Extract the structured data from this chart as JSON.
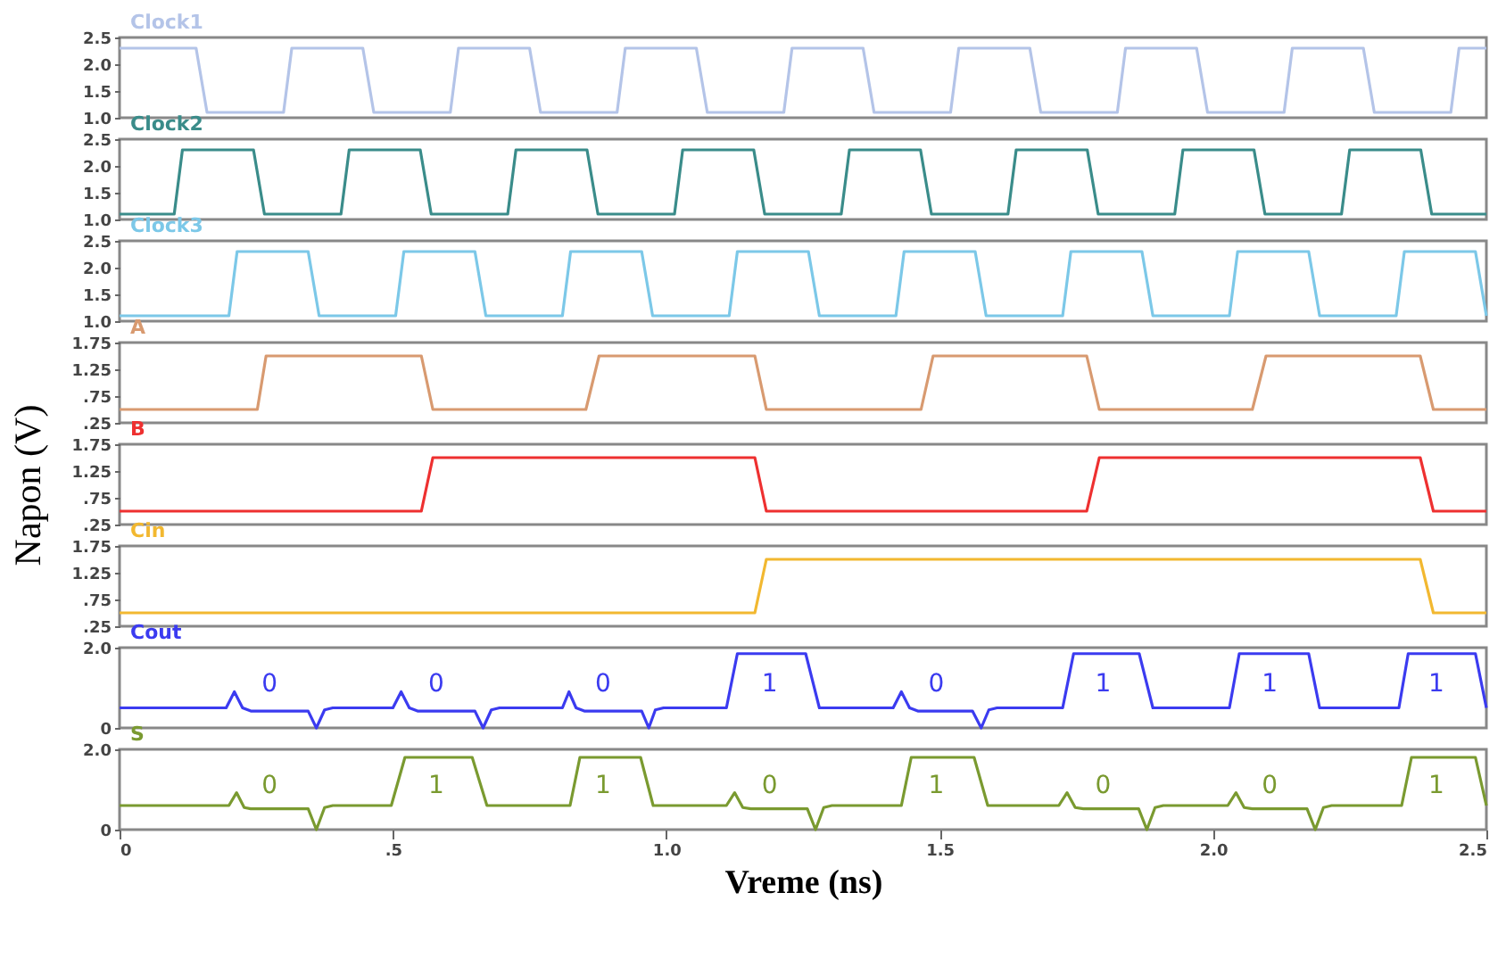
{
  "chart_data": [
    {
      "type": "line",
      "x": [
        0,
        0.14,
        0.16,
        0.3,
        0.315,
        0.445,
        0.465,
        0.605,
        0.62,
        0.75,
        0.77,
        0.91,
        0.925,
        1.055,
        1.075,
        1.215,
        1.23,
        1.36,
        1.38,
        1.52,
        1.535,
        1.665,
        1.685,
        1.825,
        1.84,
        1.97,
        1.99,
        2.13,
        2.145,
        2.275,
        2.295,
        2.435,
        2.45,
        2.5
      ],
      "series": [
        {
          "name": "Clock1",
          "color": "#b4c4e8",
          "values": [
            2.3,
            2.3,
            1.1,
            1.1,
            2.3,
            2.3,
            1.1,
            1.1,
            2.3,
            2.3,
            1.1,
            1.1,
            2.3,
            2.3,
            1.1,
            1.1,
            2.3,
            2.3,
            1.1,
            1.1,
            2.3,
            2.3,
            1.1,
            1.1,
            2.3,
            2.3,
            1.1,
            1.1,
            2.3,
            2.3,
            1.1,
            1.1,
            2.3,
            2.3
          ]
        }
      ],
      "xlim": [
        0,
        2.5
      ],
      "ylim": [
        1,
        2.5
      ],
      "yticks": [
        {
          "value": 1,
          "label": "1.0"
        },
        1.5,
        {
          "value": 2,
          "label": "2.0"
        },
        2.5
      ],
      "tick_labels": "y"
    },
    {
      "type": "line",
      "x": [
        0,
        0.1,
        0.115,
        0.245,
        0.265,
        0.405,
        0.42,
        0.55,
        0.57,
        0.71,
        0.725,
        0.855,
        0.875,
        1.015,
        1.03,
        1.16,
        1.18,
        1.32,
        1.335,
        1.465,
        1.485,
        1.625,
        1.64,
        1.77,
        1.79,
        1.93,
        1.945,
        2.075,
        2.095,
        2.235,
        2.25,
        2.38,
        2.4,
        2.5
      ],
      "series": [
        {
          "name": "Clock2",
          "color": "#3a8c8a",
          "values": [
            1.1,
            1.1,
            2.3,
            2.3,
            1.1,
            1.1,
            2.3,
            2.3,
            1.1,
            1.1,
            2.3,
            2.3,
            1.1,
            1.1,
            2.3,
            2.3,
            1.1,
            1.1,
            2.3,
            2.3,
            1.1,
            1.1,
            2.3,
            2.3,
            1.1,
            1.1,
            2.3,
            2.3,
            1.1,
            1.1,
            2.3,
            2.3,
            1.1,
            1.1
          ]
        }
      ],
      "xlim": [
        0,
        2.5
      ],
      "ylim": [
        1,
        2.5
      ],
      "yticks": [
        {
          "value": 1,
          "label": "1.0"
        },
        1.5,
        {
          "value": 2,
          "label": "2.0"
        },
        2.5
      ],
      "tick_labels": "y"
    },
    {
      "type": "line",
      "x": [
        0,
        0.2,
        0.215,
        0.345,
        0.365,
        0.505,
        0.52,
        0.65,
        0.67,
        0.81,
        0.825,
        0.955,
        0.975,
        1.115,
        1.13,
        1.26,
        1.28,
        1.42,
        1.435,
        1.565,
        1.585,
        1.725,
        1.74,
        1.87,
        1.89,
        2.03,
        2.045,
        2.175,
        2.195,
        2.335,
        2.35,
        2.48,
        2.5
      ],
      "series": [
        {
          "name": "Clock3",
          "color": "#7cc8e8",
          "values": [
            1.1,
            1.1,
            2.3,
            2.3,
            1.1,
            1.1,
            2.3,
            2.3,
            1.1,
            1.1,
            2.3,
            2.3,
            1.1,
            1.1,
            2.3,
            2.3,
            1.1,
            1.1,
            2.3,
            2.3,
            1.1,
            1.1,
            2.3,
            2.3,
            1.1,
            1.1,
            2.3,
            2.3,
            1.1,
            1.1,
            2.3,
            2.3,
            1.1
          ]
        }
      ],
      "xlim": [
        0,
        2.5
      ],
      "ylim": [
        1,
        2.5
      ],
      "yticks": [
        {
          "value": 1,
          "label": "1.0"
        },
        1.5,
        {
          "value": 2,
          "label": "2.0"
        },
        2.5
      ],
      "tick_labels": "y"
    },
    {
      "type": "line",
      "x": [
        0,
        0.252,
        0.268,
        0.552,
        0.573,
        0.853,
        0.877,
        1.162,
        1.183,
        1.466,
        1.488,
        1.769,
        1.792,
        2.072,
        2.097,
        2.379,
        2.403,
        2.5
      ],
      "series": [
        {
          "name": "A",
          "color": "#d89a70",
          "values": [
            0.5,
            0.5,
            1.5,
            1.5,
            0.5,
            0.5,
            1.5,
            1.5,
            0.5,
            0.5,
            1.5,
            1.5,
            0.5,
            0.5,
            1.5,
            1.5,
            0.5,
            0.5
          ]
        }
      ],
      "xlim": [
        0,
        2.5
      ],
      "ylim": [
        0.25,
        1.75
      ],
      "yticks": [
        {
          "value": 0.25,
          "label": ".25"
        },
        {
          "value": 0.75,
          "label": ".75"
        },
        1.25,
        1.75
      ],
      "tick_labels": "y"
    },
    {
      "type": "line",
      "x": [
        0,
        0.552,
        0.573,
        1.162,
        1.183,
        1.769,
        1.792,
        2.379,
        2.403,
        2.5
      ],
      "series": [
        {
          "name": "B",
          "color": "#ee3030",
          "values": [
            0.5,
            0.5,
            1.5,
            1.5,
            0.5,
            0.5,
            1.5,
            1.5,
            0.5,
            0.5
          ]
        }
      ],
      "ylabel": "Napon (V)",
      "xlim": [
        0,
        2.5
      ],
      "ylim": [
        0.25,
        1.75
      ],
      "yticks": [
        {
          "value": 0.25,
          "label": ".25"
        },
        {
          "value": 0.75,
          "label": ".75"
        },
        1.25,
        1.75
      ],
      "tick_labels": "y"
    },
    {
      "type": "line",
      "x": [
        0,
        1.162,
        1.183,
        2.379,
        2.403,
        2.5
      ],
      "series": [
        {
          "name": "Cin",
          "color": "#f2b830",
          "values": [
            0.5,
            0.5,
            1.5,
            1.5,
            0.5,
            0.5
          ]
        }
      ],
      "xlim": [
        0,
        2.5
      ],
      "ylim": [
        0.25,
        1.75
      ],
      "yticks": [
        {
          "value": 0.25,
          "label": ".25"
        },
        {
          "value": 0.75,
          "label": ".75"
        },
        1.25,
        1.75
      ],
      "tick_labels": "y"
    },
    {
      "type": "line",
      "x": [
        0,
        0.195,
        0.21,
        0.225,
        0.24,
        0.345,
        0.36,
        0.375,
        0.39,
        0.5,
        0.515,
        0.53,
        0.545,
        0.65,
        0.665,
        0.68,
        0.695,
        0.81,
        0.822,
        0.835,
        0.85,
        0.955,
        0.968,
        0.98,
        0.995,
        1.11,
        1.13,
        1.255,
        1.28,
        1.415,
        1.43,
        1.445,
        1.46,
        1.56,
        1.576,
        1.59,
        1.605,
        1.725,
        1.745,
        1.865,
        1.89,
        2.03,
        2.048,
        2.175,
        2.195,
        2.34,
        2.357,
        2.48,
        2.5
      ],
      "series": [
        {
          "name": "Cout",
          "color": "#3b3bf0",
          "values": [
            0.5,
            0.5,
            0.9,
            0.5,
            0.42,
            0.42,
            0,
            0.45,
            0.5,
            0.5,
            0.9,
            0.5,
            0.42,
            0.42,
            0,
            0.45,
            0.5,
            0.5,
            0.9,
            0.5,
            0.42,
            0.42,
            0,
            0.45,
            0.5,
            0.5,
            1.85,
            1.85,
            0.5,
            0.5,
            0.9,
            0.5,
            0.42,
            0.42,
            0,
            0.45,
            0.5,
            0.5,
            1.85,
            1.85,
            0.5,
            0.5,
            1.85,
            1.85,
            0.5,
            0.5,
            1.85,
            1.85,
            0.5
          ]
        }
      ],
      "annotations": [
        "0",
        "0",
        "0",
        "1",
        "0",
        "1",
        "1",
        "1"
      ],
      "xlim": [
        0,
        2.5
      ],
      "ylim": [
        0,
        2
      ],
      "yticks": [
        0,
        {
          "value": 2,
          "label": "2.0"
        }
      ],
      "tick_labels": "y"
    },
    {
      "type": "line",
      "x": [
        0,
        0.2,
        0.214,
        0.228,
        0.24,
        0.345,
        0.36,
        0.375,
        0.39,
        0.497,
        0.522,
        0.645,
        0.672,
        0.824,
        0.842,
        0.953,
        0.976,
        1.11,
        1.125,
        1.14,
        1.155,
        1.258,
        1.273,
        1.288,
        1.303,
        1.43,
        1.448,
        1.563,
        1.588,
        1.718,
        1.733,
        1.748,
        1.763,
        1.864,
        1.879,
        1.894,
        1.909,
        2.027,
        2.042,
        2.057,
        2.072,
        2.172,
        2.187,
        2.202,
        2.217,
        2.345,
        2.363,
        2.48,
        2.5
      ],
      "series": [
        {
          "name": "S",
          "color": "#7a9a30",
          "values": [
            0.6,
            0.6,
            0.92,
            0.55,
            0.52,
            0.52,
            0,
            0.55,
            0.6,
            0.6,
            1.8,
            1.8,
            0.6,
            0.6,
            1.8,
            1.8,
            0.6,
            0.6,
            0.92,
            0.55,
            0.52,
            0.52,
            0,
            0.55,
            0.6,
            0.6,
            1.8,
            1.8,
            0.6,
            0.6,
            0.92,
            0.55,
            0.52,
            0.52,
            0,
            0.55,
            0.6,
            0.6,
            0.92,
            0.55,
            0.52,
            0.52,
            0,
            0.55,
            0.6,
            0.6,
            1.8,
            1.8,
            0.6
          ]
        }
      ],
      "annotations": [
        "0",
        "1",
        "1",
        "0",
        "1",
        "0",
        "0",
        "1"
      ],
      "xlabel": "Vreme (ns)",
      "xlim": [
        0,
        2.5
      ],
      "xticks": [
        0,
        {
          "value": 0.5,
          "label": ".5"
        },
        {
          "value": 1,
          "label": "1.0"
        },
        1.5,
        {
          "value": 2,
          "label": "2.0"
        },
        2.5
      ],
      "ylim": [
        0,
        2
      ],
      "yticks": [
        0,
        {
          "value": 2,
          "label": "2.0"
        }
      ]
    }
  ]
}
